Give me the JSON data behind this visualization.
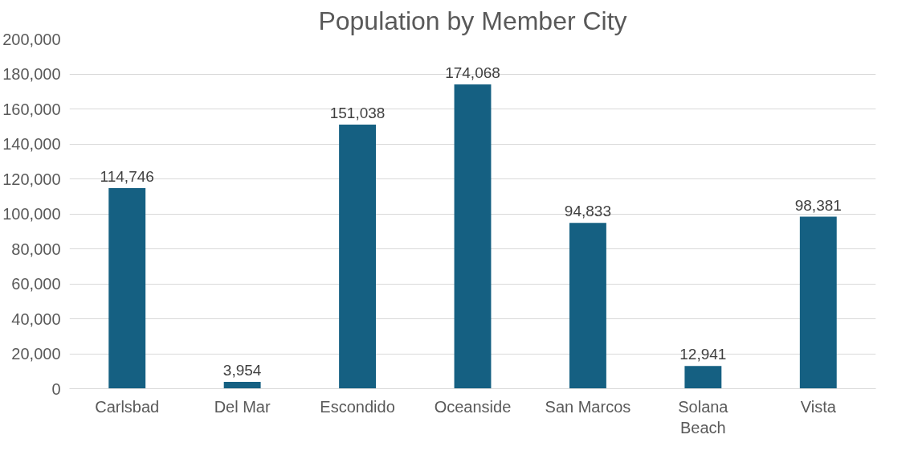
{
  "chart_data": {
    "type": "bar",
    "title": "Population by Member City",
    "categories": [
      "Carlsbad",
      "Del Mar",
      "Escondido",
      "Oceanside",
      "San Marcos",
      "Solana Beach",
      "Vista"
    ],
    "values": [
      114746,
      3954,
      151038,
      174068,
      94833,
      12941,
      98381
    ],
    "color": "#156082",
    "ylim": [
      0,
      200000
    ],
    "yticks": [
      {
        "value": 0,
        "label": "0"
      },
      {
        "value": 20000,
        "label": "20,000"
      },
      {
        "value": 40000,
        "label": "40,000"
      },
      {
        "value": 60000,
        "label": "60,000"
      },
      {
        "value": 80000,
        "label": "80,000"
      },
      {
        "value": 100000,
        "label": "100,000"
      },
      {
        "value": 120000,
        "label": "120,000"
      },
      {
        "value": 140000,
        "label": "140,000"
      },
      {
        "value": 160000,
        "label": "160,000"
      },
      {
        "value": 180000,
        "label": "180,000"
      },
      {
        "value": 200000,
        "label": "200,000"
      }
    ],
    "value_labels": [
      "114,746",
      "3,954",
      "151,038",
      "174,068",
      "94,833",
      "12,941",
      "98,381"
    ],
    "grid": "y"
  }
}
